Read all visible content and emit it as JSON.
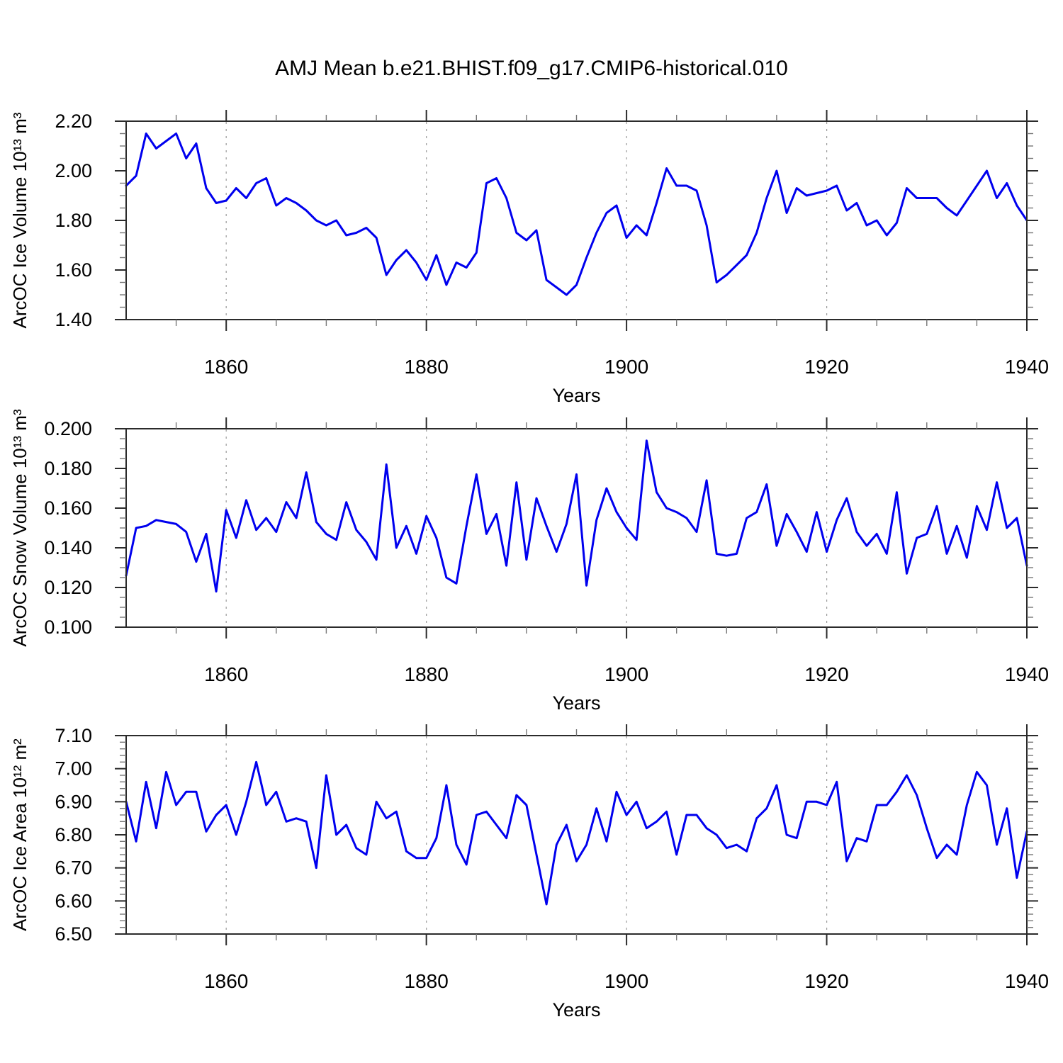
{
  "title": "AMJ Mean b.e21.BHIST.f09_g17.CMIP6-historical.010",
  "colors": {
    "background": "#FFFFFF",
    "line": "#0000EE",
    "axis": "#2B2B2B",
    "grid": "#9A9A9A",
    "minor_tick": "#777777",
    "text": "#000000"
  },
  "chart_data": [
    {
      "type": "line",
      "title": "AMJ Mean b.e21.BHIST.f09_g17.CMIP6-historical.010",
      "ylabel": "ArcOC Ice Volume 10¹³ m³",
      "xlabel": "Years",
      "legend_position": "none",
      "grid": "dashed-vertical",
      "ylim": [
        1.4,
        2.2
      ],
      "yticks": [
        2.2,
        2.0,
        1.8,
        1.6,
        1.4
      ],
      "ytick_labels": [
        "2.20",
        "2.00",
        "1.80",
        "1.60",
        "1.40"
      ],
      "y_minor_step": 0.05,
      "xlim": [
        1850,
        1940
      ],
      "xticks": [
        1860,
        1880,
        1900,
        1920,
        1940
      ],
      "xtick_labels": [
        "1860",
        "1880",
        "1900",
        "1920",
        "1940"
      ],
      "x_minor_step": 5,
      "grid_x": [
        1860,
        1880,
        1900,
        1920
      ],
      "years": [
        1850,
        1851,
        1852,
        1853,
        1854,
        1855,
        1856,
        1857,
        1858,
        1859,
        1860,
        1861,
        1862,
        1863,
        1864,
        1865,
        1866,
        1867,
        1868,
        1869,
        1870,
        1871,
        1872,
        1873,
        1874,
        1875,
        1876,
        1877,
        1878,
        1879,
        1880,
        1881,
        1882,
        1883,
        1884,
        1885,
        1886,
        1887,
        1888,
        1889,
        1890,
        1891,
        1892,
        1893,
        1894,
        1895,
        1896,
        1897,
        1898,
        1899,
        1900,
        1901,
        1902,
        1903,
        1904,
        1905,
        1906,
        1907,
        1908,
        1909,
        1910,
        1911,
        1912,
        1913,
        1914,
        1915,
        1916,
        1917,
        1918,
        1919,
        1920,
        1921,
        1922,
        1923,
        1924,
        1925,
        1926,
        1927,
        1928,
        1929,
        1930,
        1931,
        1932,
        1933,
        1934,
        1935,
        1936,
        1937,
        1938,
        1939,
        1940
      ],
      "values": [
        1.94,
        1.98,
        2.15,
        2.09,
        2.12,
        2.15,
        2.05,
        2.11,
        1.93,
        1.87,
        1.88,
        1.93,
        1.89,
        1.95,
        1.97,
        1.86,
        1.89,
        1.87,
        1.84,
        1.8,
        1.78,
        1.8,
        1.74,
        1.75,
        1.77,
        1.73,
        1.58,
        1.64,
        1.68,
        1.63,
        1.56,
        1.66,
        1.54,
        1.63,
        1.61,
        1.67,
        1.95,
        1.97,
        1.89,
        1.75,
        1.72,
        1.76,
        1.56,
        1.53,
        1.5,
        1.54,
        1.65,
        1.75,
        1.83,
        1.86,
        1.73,
        1.78,
        1.74,
        1.87,
        2.01,
        1.94,
        1.94,
        1.92,
        1.78,
        1.55,
        1.58,
        1.62,
        1.66,
        1.75,
        1.89,
        2.0,
        1.83,
        1.93,
        1.9,
        1.91,
        1.92,
        1.94,
        1.84,
        1.87,
        1.78,
        1.8,
        1.74,
        1.79,
        1.93,
        1.89,
        1.89,
        1.89,
        1.85,
        1.82,
        1.88,
        1.94,
        2.0,
        1.89,
        1.95,
        1.86,
        1.8
      ]
    },
    {
      "type": "line",
      "ylabel": "ArcOC Snow Volume 10¹³ m³",
      "xlabel": "Years",
      "legend_position": "none",
      "grid": "dashed-vertical",
      "ylim": [
        0.1,
        0.2
      ],
      "yticks": [
        0.2,
        0.18,
        0.16,
        0.14,
        0.12,
        0.1
      ],
      "ytick_labels": [
        "0.200",
        "0.180",
        "0.160",
        "0.140",
        "0.120",
        "0.100"
      ],
      "y_minor_step": 0.005,
      "xlim": [
        1850,
        1940
      ],
      "xticks": [
        1860,
        1880,
        1900,
        1920,
        1940
      ],
      "xtick_labels": [
        "1860",
        "1880",
        "1900",
        "1920",
        "1940"
      ],
      "x_minor_step": 5,
      "grid_x": [
        1860,
        1880,
        1900,
        1920
      ],
      "years": [
        1850,
        1851,
        1852,
        1853,
        1854,
        1855,
        1856,
        1857,
        1858,
        1859,
        1860,
        1861,
        1862,
        1863,
        1864,
        1865,
        1866,
        1867,
        1868,
        1869,
        1870,
        1871,
        1872,
        1873,
        1874,
        1875,
        1876,
        1877,
        1878,
        1879,
        1880,
        1881,
        1882,
        1883,
        1884,
        1885,
        1886,
        1887,
        1888,
        1889,
        1890,
        1891,
        1892,
        1893,
        1894,
        1895,
        1896,
        1897,
        1898,
        1899,
        1900,
        1901,
        1902,
        1903,
        1904,
        1905,
        1906,
        1907,
        1908,
        1909,
        1910,
        1911,
        1912,
        1913,
        1914,
        1915,
        1916,
        1917,
        1918,
        1919,
        1920,
        1921,
        1922,
        1923,
        1924,
        1925,
        1926,
        1927,
        1928,
        1929,
        1930,
        1931,
        1932,
        1933,
        1934,
        1935,
        1936,
        1937,
        1938,
        1939,
        1940
      ],
      "values": [
        0.126,
        0.15,
        0.151,
        0.154,
        0.153,
        0.152,
        0.148,
        0.133,
        0.147,
        0.118,
        0.159,
        0.145,
        0.164,
        0.149,
        0.155,
        0.148,
        0.163,
        0.155,
        0.178,
        0.153,
        0.147,
        0.144,
        0.163,
        0.149,
        0.143,
        0.134,
        0.182,
        0.14,
        0.151,
        0.137,
        0.156,
        0.145,
        0.125,
        0.122,
        0.151,
        0.177,
        0.147,
        0.157,
        0.131,
        0.173,
        0.134,
        0.165,
        0.151,
        0.138,
        0.152,
        0.177,
        0.121,
        0.154,
        0.17,
        0.158,
        0.15,
        0.144,
        0.194,
        0.168,
        0.16,
        0.158,
        0.155,
        0.148,
        0.174,
        0.137,
        0.136,
        0.137,
        0.155,
        0.158,
        0.172,
        0.141,
        0.157,
        0.148,
        0.138,
        0.158,
        0.138,
        0.154,
        0.165,
        0.148,
        0.141,
        0.147,
        0.137,
        0.168,
        0.127,
        0.145,
        0.147,
        0.161,
        0.137,
        0.151,
        0.135,
        0.161,
        0.149,
        0.173,
        0.15,
        0.155,
        0.131
      ]
    },
    {
      "type": "line",
      "ylabel": "ArcOC Ice Area 10¹² m²",
      "xlabel": "Years",
      "legend_position": "none",
      "grid": "dashed-vertical",
      "ylim": [
        6.5,
        7.1
      ],
      "yticks": [
        7.1,
        7.0,
        6.9,
        6.8,
        6.7,
        6.6,
        6.5
      ],
      "ytick_labels": [
        "7.10",
        "7.00",
        "6.90",
        "6.80",
        "6.70",
        "6.60",
        "6.50"
      ],
      "y_minor_step": 0.02,
      "xlim": [
        1850,
        1940
      ],
      "xticks": [
        1860,
        1880,
        1900,
        1920,
        1940
      ],
      "xtick_labels": [
        "1860",
        "1880",
        "1900",
        "1920",
        "1940"
      ],
      "x_minor_step": 5,
      "grid_x": [
        1860,
        1880,
        1900,
        1920
      ],
      "years": [
        1850,
        1851,
        1852,
        1853,
        1854,
        1855,
        1856,
        1857,
        1858,
        1859,
        1860,
        1861,
        1862,
        1863,
        1864,
        1865,
        1866,
        1867,
        1868,
        1869,
        1870,
        1871,
        1872,
        1873,
        1874,
        1875,
        1876,
        1877,
        1878,
        1879,
        1880,
        1881,
        1882,
        1883,
        1884,
        1885,
        1886,
        1887,
        1888,
        1889,
        1890,
        1891,
        1892,
        1893,
        1894,
        1895,
        1896,
        1897,
        1898,
        1899,
        1900,
        1901,
        1902,
        1903,
        1904,
        1905,
        1906,
        1907,
        1908,
        1909,
        1910,
        1911,
        1912,
        1913,
        1914,
        1915,
        1916,
        1917,
        1918,
        1919,
        1920,
        1921,
        1922,
        1923,
        1924,
        1925,
        1926,
        1927,
        1928,
        1929,
        1930,
        1931,
        1932,
        1933,
        1934,
        1935,
        1936,
        1937,
        1938,
        1939,
        1940
      ],
      "values": [
        6.9,
        6.78,
        6.96,
        6.82,
        6.99,
        6.89,
        6.93,
        6.93,
        6.81,
        6.86,
        6.89,
        6.8,
        6.9,
        7.02,
        6.89,
        6.93,
        6.84,
        6.85,
        6.84,
        6.7,
        6.98,
        6.8,
        6.83,
        6.76,
        6.74,
        6.9,
        6.85,
        6.87,
        6.75,
        6.73,
        6.73,
        6.79,
        6.95,
        6.77,
        6.71,
        6.86,
        6.87,
        6.83,
        6.79,
        6.92,
        6.89,
        6.74,
        6.59,
        6.77,
        6.83,
        6.72,
        6.77,
        6.88,
        6.78,
        6.93,
        6.86,
        6.9,
        6.82,
        6.84,
        6.87,
        6.74,
        6.86,
        6.86,
        6.82,
        6.8,
        6.76,
        6.77,
        6.75,
        6.85,
        6.88,
        6.95,
        6.8,
        6.79,
        6.9,
        6.9,
        6.89,
        6.96,
        6.72,
        6.79,
        6.78,
        6.89,
        6.89,
        6.93,
        6.98,
        6.92,
        6.82,
        6.73,
        6.77,
        6.74,
        6.89,
        6.99,
        6.95,
        6.77,
        6.88,
        6.67,
        6.81
      ]
    }
  ]
}
